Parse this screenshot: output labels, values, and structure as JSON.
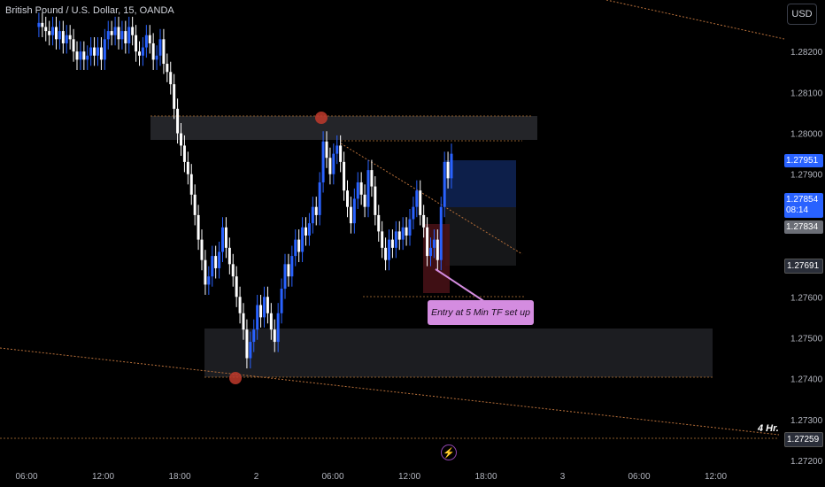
{
  "header": {
    "title": "British Pound / U.S. Dollar, 15, OANDA",
    "currency": "USD"
  },
  "price_tags": {
    "current": "1.27951",
    "last": "1.27854",
    "countdown": "08:14",
    "level1": "1.27834",
    "level2": "1.27691",
    "level3": "1.27259"
  },
  "annotations": {
    "entry_note": "Entry at 5 Min TF set up",
    "timeframe": "4 Hr."
  },
  "icons": {
    "bolt": "lightning-icon"
  },
  "colors": {
    "up": "#2962ff",
    "down": "#ffffff",
    "accent": "#2962ff",
    "note": "#d48ce0"
  },
  "chart_data": {
    "type": "candlestick",
    "ylim": [
      1.272,
      1.283
    ],
    "y_ticks": [
      1.282,
      1.281,
      1.28,
      1.279,
      1.278,
      1.277,
      1.276,
      1.275,
      1.274,
      1.273,
      1.272
    ],
    "y_tick_labels": [
      "1.28200",
      "1.28100",
      "1.28000",
      "1.27900",
      "",
      "",
      "1.27600",
      "1.27500",
      "1.27400",
      "1.27300",
      "1.27200"
    ],
    "x_tick_labels": [
      "06:00",
      "12:00",
      "18:00",
      "2",
      "06:00",
      "12:00",
      "18:00",
      "3",
      "06:00",
      "12:00"
    ],
    "closes": [
      1.2826,
      1.2827,
      1.2826,
      1.2825,
      1.2824,
      1.2826,
      1.2823,
      1.2825,
      1.2822,
      1.2824,
      1.2823,
      1.282,
      1.2818,
      1.282,
      1.2818,
      1.2819,
      1.2821,
      1.2819,
      1.2821,
      1.2818,
      1.2823,
      1.2825,
      1.2824,
      1.2826,
      1.2823,
      1.2825,
      1.2822,
      1.2826,
      1.2824,
      1.282,
      1.2819,
      1.2821,
      1.2824,
      1.2822,
      1.2818,
      1.2819,
      1.2823,
      1.2817,
      1.2815,
      1.2812,
      1.2806,
      1.28,
      1.2797,
      1.2793,
      1.279,
      1.2785,
      1.278,
      1.2774,
      1.2769,
      1.2763,
      1.2765,
      1.277,
      1.2767,
      1.2771,
      1.2777,
      1.2772,
      1.2768,
      1.2765,
      1.276,
      1.2756,
      1.2752,
      1.2745,
      1.2749,
      1.2752,
      1.2758,
      1.2755,
      1.276,
      1.2756,
      1.2752,
      1.2749,
      1.2756,
      1.2762,
      1.2768,
      1.2765,
      1.277,
      1.2774,
      1.2771,
      1.2777,
      1.2775,
      1.2778,
      1.2782,
      1.278,
      1.2788,
      1.2798,
      1.2794,
      1.279,
      1.2795,
      1.2797,
      1.2793,
      1.2786,
      1.2782,
      1.2778,
      1.2784,
      1.2788,
      1.2785,
      1.2782,
      1.2791,
      1.2787,
      1.278,
      1.2776,
      1.2772,
      1.2769,
      1.2774,
      1.2772,
      1.2776,
      1.2774,
      1.2777,
      1.2775,
      1.2779,
      1.2782,
      1.2786,
      1.278,
      1.2777,
      1.277,
      1.2772,
      1.2774,
      1.2769,
      1.2782,
      1.2793,
      1.2789,
      1.2795
    ]
  }
}
